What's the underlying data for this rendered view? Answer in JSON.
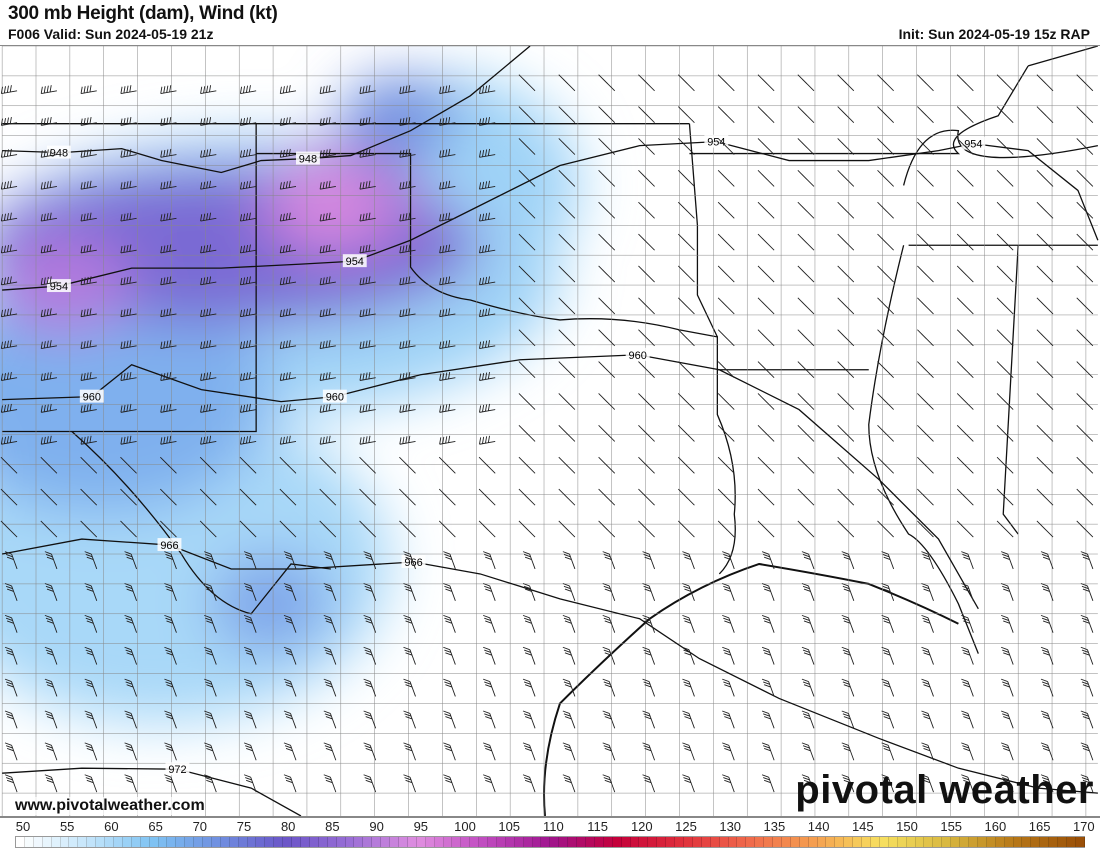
{
  "header": {
    "title": "300 mb Height (dam), Wind (kt)",
    "valid": "F006 Valid: Sun 2024-05-19 21z",
    "init": "Init: Sun 2024-05-19 15z RAP"
  },
  "map": {
    "region": "Southern Plains / Texas",
    "contour_labels": [
      {
        "text": "948",
        "pos": "west Oklahoma panhandle"
      },
      {
        "text": "948",
        "pos": "Oklahoma panhandle"
      },
      {
        "text": "954",
        "pos": "New Mexico"
      },
      {
        "text": "954",
        "pos": "west Oklahoma"
      },
      {
        "text": "954",
        "pos": "Arkansas"
      },
      {
        "text": "954",
        "pos": "Tennessee"
      },
      {
        "text": "960",
        "pos": "New Mexico"
      },
      {
        "text": "960",
        "pos": "Texas panhandle"
      },
      {
        "text": "960",
        "pos": "north Texas"
      },
      {
        "text": "966",
        "pos": "west Texas"
      },
      {
        "text": "966",
        "pos": "central Texas"
      },
      {
        "text": "972",
        "pos": "south Texas"
      }
    ],
    "colors": {
      "light_blue": "#9fd3f7",
      "blue": "#6b8fe0",
      "purple": "#7a55c8",
      "pink": "#d98ae0"
    }
  },
  "footer": {
    "url": "www.pivotalweather.com",
    "logo": "pivotal weather"
  },
  "colorbar": {
    "labels": [
      "50",
      "55",
      "60",
      "65",
      "70",
      "75",
      "80",
      "85",
      "90",
      "95",
      "100",
      "105",
      "110",
      "115",
      "120",
      "125",
      "130",
      "135",
      "140",
      "145",
      "150",
      "155",
      "160",
      "165",
      "170"
    ],
    "units": "kt",
    "stops": [
      "#ffffff",
      "#c6e6fb",
      "#7fc3f3",
      "#6f8fe0",
      "#6a55c8",
      "#9b6fd6",
      "#e08ee0",
      "#c04cc0",
      "#a0158f",
      "#c4003a",
      "#e0303c",
      "#f06a4c",
      "#f5a050",
      "#f7e060",
      "#d8b840",
      "#b87818",
      "#9a5008"
    ]
  }
}
